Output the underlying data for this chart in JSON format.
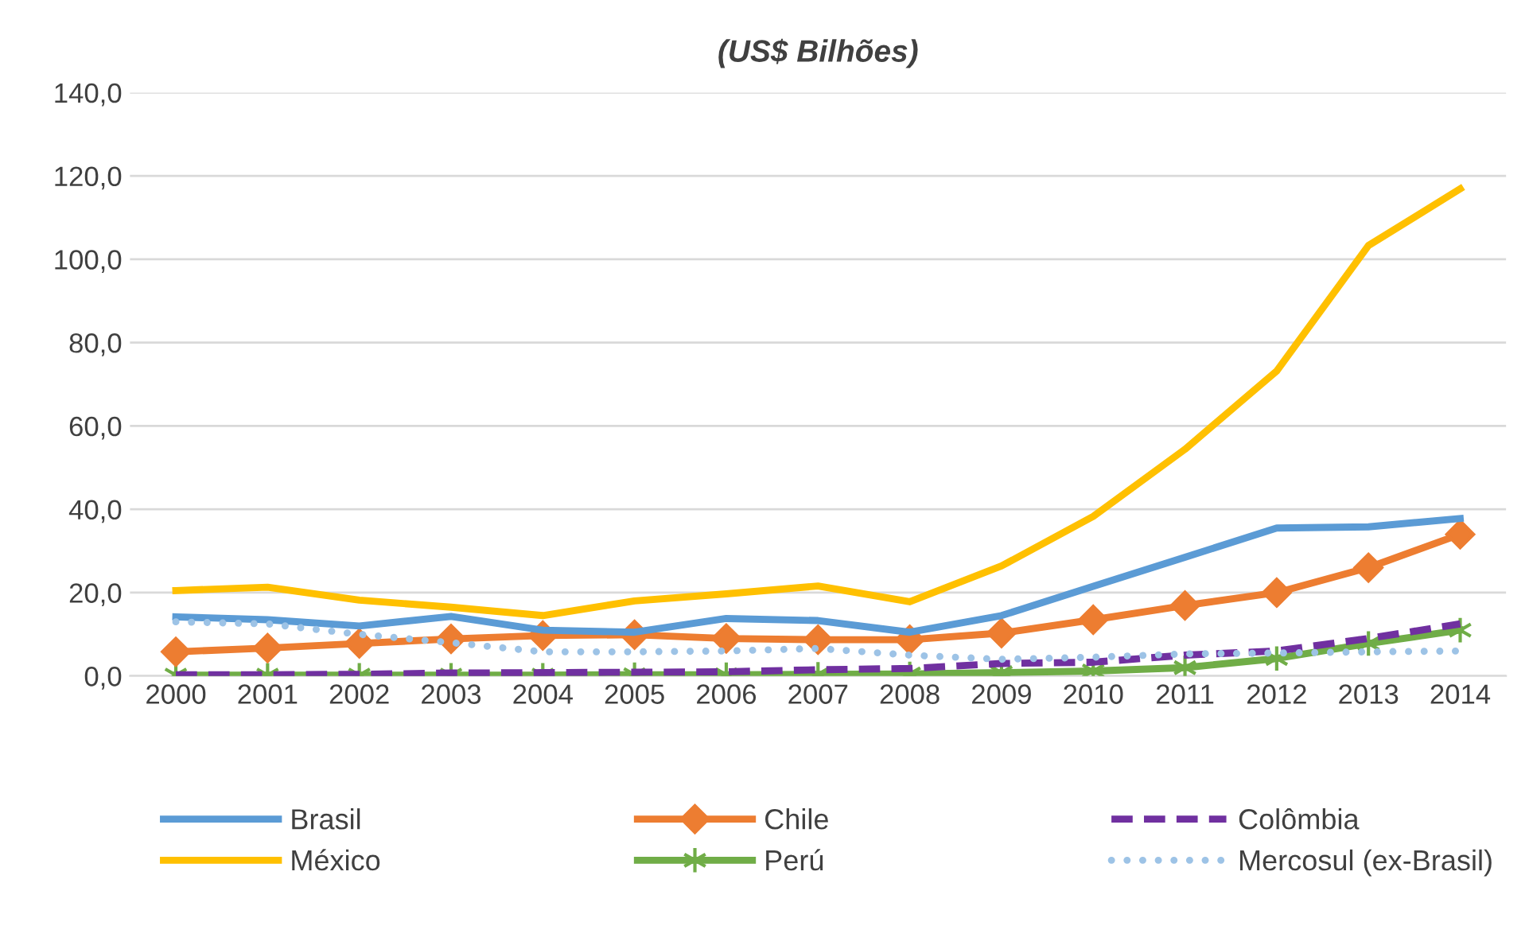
{
  "chart_data": {
    "type": "line",
    "title": "(US$ Bilhões)",
    "categories": [
      "2000",
      "2001",
      "2002",
      "2003",
      "2004",
      "2005",
      "2006",
      "2007",
      "2008",
      "2009",
      "2010",
      "2011",
      "2012",
      "2013",
      "2014"
    ],
    "ylim": [
      0,
      140
    ],
    "yticks": [
      {
        "value": 0,
        "label": "0,0"
      },
      {
        "value": 20,
        "label": "20,0"
      },
      {
        "value": 40,
        "label": "40,0"
      },
      {
        "value": 60,
        "label": "60,0"
      },
      {
        "value": 80,
        "label": "80,0"
      },
      {
        "value": 100,
        "label": "100,0"
      },
      {
        "value": 120,
        "label": "120,0"
      },
      {
        "value": 140,
        "label": "140,0"
      }
    ],
    "grid": "y",
    "legend": "bottom",
    "series": [
      {
        "name": "Brasil",
        "color": "#5b9bd5",
        "marker": "none",
        "line_style": "solid",
        "values": [
          14.2,
          13.5,
          12.0,
          14.3,
          11.0,
          10.5,
          13.8,
          13.3,
          10.5,
          14.5,
          21.5,
          28.5,
          35.5,
          35.8,
          37.8
        ]
      },
      {
        "name": "Chile",
        "color": "#ed7d31",
        "marker": "diamond",
        "line_style": "solid",
        "values": [
          5.8,
          6.7,
          7.8,
          8.9,
          9.7,
          9.9,
          9.0,
          8.7,
          8.7,
          10.3,
          13.5,
          16.9,
          20.0,
          26.0,
          34.0
        ]
      },
      {
        "name": "Colômbia",
        "color": "#7030a0",
        "marker": "none",
        "line_style": "dashed",
        "values": [
          0.3,
          0.3,
          0.4,
          0.7,
          0.8,
          0.9,
          1.0,
          1.5,
          1.8,
          3.0,
          3.3,
          5.0,
          6.0,
          9.0,
          12.5
        ]
      },
      {
        "name": "México",
        "color": "#ffc000",
        "marker": "none",
        "line_style": "solid",
        "values": [
          20.5,
          21.3,
          18.2,
          16.5,
          14.5,
          18.0,
          19.7,
          21.6,
          17.8,
          26.4,
          38.3,
          54.4,
          73.2,
          103.3,
          116.9
        ]
      },
      {
        "name": "Perú",
        "color": "#70ad47",
        "marker": "cross",
        "line_style": "solid",
        "values": [
          0.2,
          0.2,
          0.2,
          0.2,
          0.2,
          0.3,
          0.3,
          0.4,
          0.5,
          0.8,
          1.2,
          2.0,
          4.2,
          7.8,
          11.0
        ]
      },
      {
        "name": "Mercosul (ex-Brasil)",
        "color": "#9dc3e6",
        "marker": "none",
        "line_style": "dotted",
        "values": [
          13.0,
          12.5,
          10.0,
          8.0,
          5.8,
          5.8,
          6.0,
          6.6,
          5.0,
          4.0,
          4.5,
          5.3,
          5.5,
          5.8,
          6.0
        ]
      }
    ]
  }
}
